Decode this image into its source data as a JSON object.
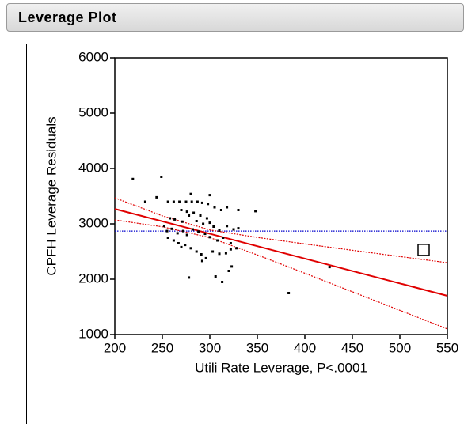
{
  "header": {
    "title": "Leverage Plot"
  },
  "chart_data": {
    "type": "scatter",
    "xlabel": "Utili Rate Leverage, P<.0001",
    "ylabel": "CPFH Leverage Residuals",
    "xlim": [
      200,
      550
    ],
    "xticks": [
      200,
      250,
      300,
      350,
      400,
      450,
      500,
      550
    ],
    "ylim": [
      1000,
      6000
    ],
    "yticks": [
      1000,
      2000,
      3000,
      4000,
      5000,
      6000
    ],
    "points": {
      "color": "#000000",
      "x": [
        219,
        249,
        232,
        244,
        256,
        262,
        268,
        275,
        281,
        287,
        292,
        300,
        298,
        280,
        276,
        270,
        283,
        290,
        297,
        305,
        312,
        318,
        330,
        348,
        258,
        263,
        271,
        278,
        286,
        293,
        300,
        304,
        310,
        318,
        325,
        252,
        255,
        260,
        266,
        272,
        276,
        282,
        288,
        295,
        300,
        308,
        314,
        322,
        330,
        256,
        262,
        267,
        270,
        274,
        280,
        286,
        291,
        296,
        303,
        310,
        317,
        322,
        328,
        292,
        306,
        313,
        320,
        323,
        278,
        383,
        426
      ],
      "y": [
        3810,
        3850,
        3400,
        3480,
        3400,
        3400,
        3400,
        3400,
        3400,
        3400,
        3380,
        3520,
        3360,
        3540,
        3220,
        3250,
        3200,
        3150,
        3100,
        3300,
        3250,
        3300,
        3250,
        3230,
        3100,
        3080,
        3040,
        3150,
        3050,
        3000,
        3020,
        2950,
        2880,
        2960,
        2900,
        2960,
        2870,
        2910,
        2830,
        2870,
        2800,
        2900,
        2860,
        2820,
        2760,
        2700,
        2750,
        2650,
        2920,
        2750,
        2700,
        2650,
        2580,
        2620,
        2560,
        2500,
        2450,
        2380,
        2500,
        2460,
        2470,
        2540,
        2560,
        2330,
        2050,
        1950,
        2150,
        2230,
        2030,
        1750,
        2220
      ]
    },
    "highlight": {
      "x": 525,
      "y": 2530
    },
    "fit": {
      "x": [
        200,
        550
      ],
      "y": [
        3270,
        1700
      ],
      "color": "#e00000"
    },
    "confidence": {
      "color": "#e00000",
      "x": [
        200,
        250,
        300,
        350,
        400,
        450,
        500,
        550
      ],
      "upper": [
        3470,
        3145,
        2890,
        2755,
        2638,
        2523,
        2410,
        2298
      ],
      "lower": [
        3070,
        2947,
        2752,
        2439,
        2108,
        1773,
        1438,
        1102
      ]
    },
    "mean": 2870,
    "mean_color": "#0000cc"
  }
}
